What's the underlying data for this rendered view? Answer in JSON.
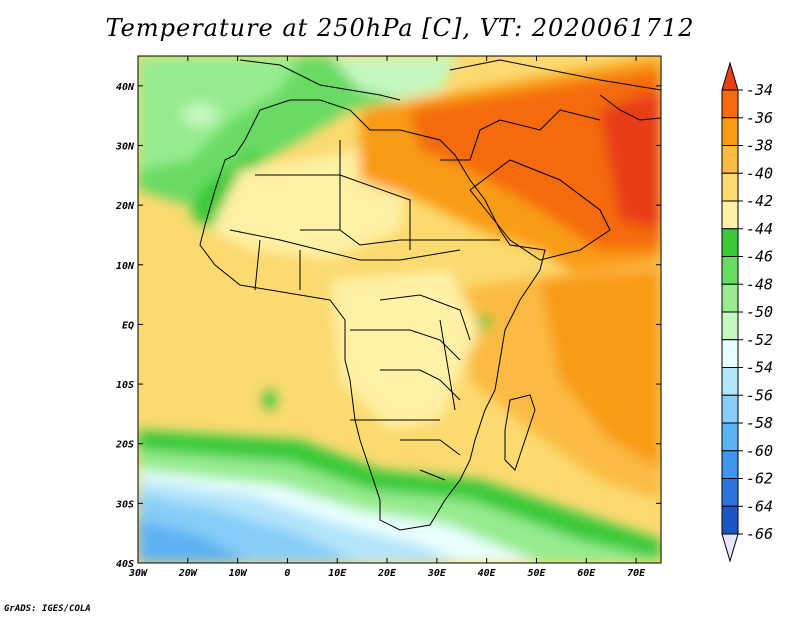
{
  "title": "Temperature at 250hPa [C], VT: 2020061712",
  "credit": "GrADS: IGES/COLA",
  "map": {
    "lon_range": [
      -30,
      75
    ],
    "lat_range": [
      -40,
      45
    ],
    "lon_ticks": [
      {
        "value": -30,
        "label": "30W"
      },
      {
        "value": -20,
        "label": "20W"
      },
      {
        "value": -10,
        "label": "10W"
      },
      {
        "value": 0,
        "label": "0"
      },
      {
        "value": 10,
        "label": "10E"
      },
      {
        "value": 20,
        "label": "20E"
      },
      {
        "value": 30,
        "label": "30E"
      },
      {
        "value": 40,
        "label": "40E"
      },
      {
        "value": 50,
        "label": "50E"
      },
      {
        "value": 60,
        "label": "60E"
      },
      {
        "value": 70,
        "label": "70E"
      }
    ],
    "lat_ticks": [
      {
        "value": -40,
        "label": "40S"
      },
      {
        "value": -30,
        "label": "30S"
      },
      {
        "value": -20,
        "label": "20S"
      },
      {
        "value": -10,
        "label": "10S"
      },
      {
        "value": 0,
        "label": "EQ"
      },
      {
        "value": 10,
        "label": "10N"
      },
      {
        "value": 20,
        "label": "20N"
      },
      {
        "value": 30,
        "label": "30N"
      },
      {
        "value": 40,
        "label": "40N"
      }
    ]
  },
  "colorbar": {
    "labels": [
      "-34",
      "-36",
      "-38",
      "-40",
      "-42",
      "-44",
      "-46",
      "-48",
      "-50",
      "-52",
      "-54",
      "-56",
      "-58",
      "-60",
      "-62",
      "-64",
      "-66"
    ],
    "colors": [
      "#e83d12",
      "#f46a0e",
      "#f99b14",
      "#fbbb43",
      "#fbda70",
      "#fff1a5",
      "#39c939",
      "#69db63",
      "#96ec8f",
      "#c5f8c0",
      "#e9ffff",
      "#b3e5fb",
      "#86cdf8",
      "#5db2f3",
      "#3f94ec",
      "#2c75dc",
      "#1b56c5",
      "#0f2e8e",
      "#1c1e6e",
      "#e6e6ff"
    ]
  }
}
